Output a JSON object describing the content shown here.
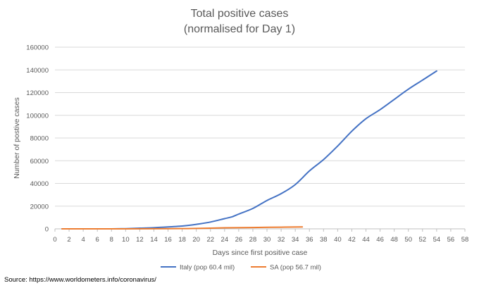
{
  "chart_data": {
    "type": "line",
    "title": "Total positive cases",
    "subtitle": "(normalised for Day 1)",
    "xlabel": "Days since first positive case",
    "ylabel": "Number of postive cases",
    "xlim": [
      0,
      58
    ],
    "ylim": [
      0,
      160000
    ],
    "x_ticks": [
      0,
      2,
      4,
      6,
      8,
      10,
      12,
      14,
      16,
      18,
      20,
      22,
      24,
      26,
      28,
      30,
      32,
      34,
      36,
      38,
      40,
      42,
      44,
      46,
      48,
      50,
      52,
      54,
      56,
      58
    ],
    "y_ticks": [
      0,
      20000,
      40000,
      60000,
      80000,
      100000,
      120000,
      140000,
      160000
    ],
    "grid": "horizontal",
    "legend_position": "bottom",
    "series": [
      {
        "name": "Italy (pop 60.4 mil)",
        "color": "#4472c4",
        "x": [
          1,
          4,
          8,
          10,
          12,
          14,
          16,
          18,
          20,
          22,
          24,
          25,
          26,
          28,
          30,
          32,
          34,
          36,
          38,
          40,
          42,
          44,
          46,
          48,
          50,
          52,
          54
        ],
        "values": [
          0,
          0,
          0,
          200,
          600,
          1000,
          1700,
          2500,
          4000,
          6000,
          9000,
          10500,
          13000,
          18000,
          25000,
          31000,
          39000,
          51000,
          61000,
          73000,
          86000,
          97000,
          105000,
          114000,
          123000,
          131000,
          139000
        ]
      },
      {
        "name": "SA (pop 56.7 mil)",
        "color": "#ed7d31",
        "x": [
          1,
          10,
          16,
          20,
          24,
          28,
          32,
          35
        ],
        "values": [
          0,
          0,
          150,
          400,
          900,
          1200,
          1500,
          1700
        ]
      }
    ],
    "source": "Source: https://www.worldometers.info/coronavirus/"
  }
}
